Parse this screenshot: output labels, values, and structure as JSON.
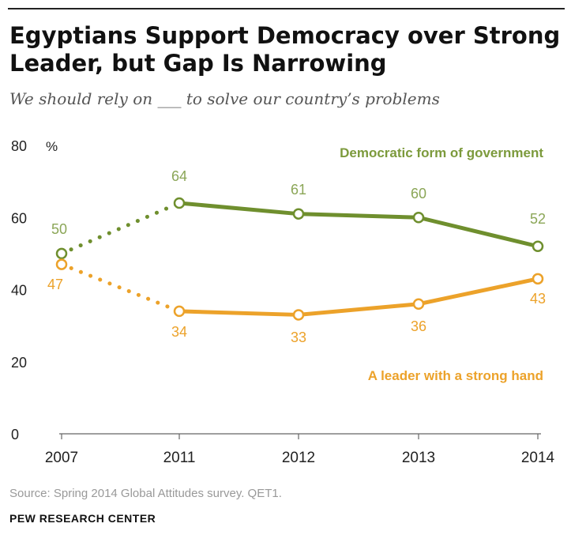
{
  "header": {
    "title": "Egyptians Support Democracy over Strong Leader, but Gap Is Narrowing",
    "subtitle": "We should rely on ___ to solve our country’s problems"
  },
  "footer": {
    "source": "Source: Spring 2014 Global Attitudes survey. QET1.",
    "credit": "PEW RESEARCH CENTER"
  },
  "chart_data": {
    "type": "line",
    "x": [
      "2007",
      "2011",
      "2012",
      "2013",
      "2014"
    ],
    "ylim": [
      0,
      80
    ],
    "yticks": [
      "0",
      "20",
      "40",
      "60",
      "80"
    ],
    "yunit": "%",
    "grid": false,
    "series": [
      {
        "name": "Democratic form of government",
        "values": [
          50,
          64,
          61,
          60,
          52
        ],
        "labels": [
          "50",
          "64",
          "61",
          "60",
          "52"
        ],
        "color": "#6f8f2e",
        "dotted_segment": [
          0,
          1
        ]
      },
      {
        "name": "A leader with a strong hand",
        "values": [
          47,
          34,
          33,
          36,
          43
        ],
        "labels": [
          "47",
          "34",
          "33",
          "36",
          "43"
        ],
        "color": "#eca22a",
        "dotted_segment": [
          0,
          1
        ]
      }
    ]
  }
}
